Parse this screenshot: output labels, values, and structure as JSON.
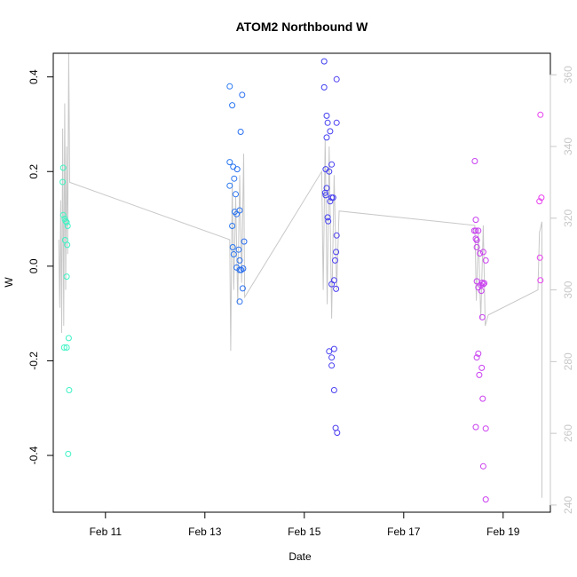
{
  "chart_data": {
    "type": "scatter",
    "title": "ATOM2 Northbound W",
    "xlabel": "Date",
    "ylabel": "W",
    "x_ticks": [
      {
        "label": "Feb 11",
        "day": 11
      },
      {
        "label": "Feb 13",
        "day": 13
      },
      {
        "label": "Feb 15",
        "day": 15
      },
      {
        "label": "Feb 17",
        "day": 17
      },
      {
        "label": "Feb 19",
        "day": 19
      }
    ],
    "xlim": [
      9.95,
      19.95
    ],
    "ylim": [
      -0.52,
      0.45
    ],
    "y_ticks": [
      "-0.4",
      "-0.2",
      "0.0",
      "0.2",
      "0.4"
    ],
    "y2_ticks": [
      "240",
      "260",
      "280",
      "300",
      "320",
      "340",
      "360"
    ],
    "y2lim": [
      238,
      366
    ],
    "grid": false,
    "colors": {
      "points_gradient": [
        "#3ff5c2",
        "#2ed0f0",
        "#2a7ff0",
        "#2a3ff0",
        "#7a3ff0",
        "#c03ff0",
        "#e83ff0"
      ],
      "secondary_line": "#c8c8c8",
      "secondary_axis": "#c8c8c8"
    },
    "series": [
      {
        "points": [
          [
            10.15,
            0.208
          ],
          [
            10.14,
            0.178
          ],
          [
            10.15,
            0.108
          ],
          [
            10.18,
            0.1
          ],
          [
            10.2,
            0.095
          ],
          [
            10.22,
            0.093
          ],
          [
            10.24,
            0.085
          ],
          [
            10.19,
            0.055
          ],
          [
            10.23,
            0.045
          ],
          [
            10.22,
            -0.022
          ],
          [
            10.17,
            -0.172
          ],
          [
            10.22,
            -0.172
          ],
          [
            10.26,
            -0.152
          ],
          [
            10.27,
            -0.262
          ],
          [
            10.25,
            -0.397
          ],
          [
            13.5,
            0.38
          ],
          [
            13.55,
            0.34
          ],
          [
            13.75,
            0.362
          ],
          [
            13.72,
            0.284
          ],
          [
            13.5,
            0.22
          ],
          [
            13.57,
            0.21
          ],
          [
            13.65,
            0.205
          ],
          [
            13.59,
            0.185
          ],
          [
            13.5,
            0.17
          ],
          [
            13.62,
            0.152
          ],
          [
            13.7,
            0.118
          ],
          [
            13.6,
            0.115
          ],
          [
            13.64,
            0.11
          ],
          [
            13.55,
            0.085
          ],
          [
            13.56,
            0.04
          ],
          [
            13.68,
            0.035
          ],
          [
            13.79,
            0.052
          ],
          [
            13.58,
            0.025
          ],
          [
            13.7,
            0.012
          ],
          [
            13.64,
            -0.003
          ],
          [
            13.7,
            -0.008
          ],
          [
            13.73,
            -0.008
          ],
          [
            13.77,
            -0.005
          ],
          [
            13.76,
            -0.047
          ],
          [
            13.7,
            -0.075
          ],
          [
            15.4,
            0.433
          ],
          [
            15.4,
            0.378
          ],
          [
            15.65,
            0.395
          ],
          [
            15.45,
            0.318
          ],
          [
            15.47,
            0.303
          ],
          [
            15.65,
            0.303
          ],
          [
            15.52,
            0.285
          ],
          [
            15.45,
            0.272
          ],
          [
            15.55,
            0.215
          ],
          [
            15.43,
            0.205
          ],
          [
            15.5,
            0.2
          ],
          [
            15.45,
            0.165
          ],
          [
            15.42,
            0.155
          ],
          [
            15.43,
            0.15
          ],
          [
            15.55,
            0.145
          ],
          [
            15.58,
            0.145
          ],
          [
            15.52,
            0.137
          ],
          [
            15.47,
            0.103
          ],
          [
            15.48,
            0.095
          ],
          [
            15.65,
            0.065
          ],
          [
            15.64,
            0.03
          ],
          [
            15.62,
            0.012
          ],
          [
            15.6,
            -0.03
          ],
          [
            15.55,
            -0.038
          ],
          [
            15.64,
            -0.048
          ],
          [
            15.6,
            -0.175
          ],
          [
            15.5,
            -0.18
          ],
          [
            15.55,
            -0.193
          ],
          [
            15.55,
            -0.21
          ],
          [
            15.6,
            -0.262
          ],
          [
            15.63,
            -0.342
          ],
          [
            15.66,
            -0.352
          ],
          [
            18.43,
            0.222
          ],
          [
            18.45,
            0.098
          ],
          [
            18.42,
            0.075
          ],
          [
            18.45,
            0.075
          ],
          [
            18.5,
            0.075
          ],
          [
            18.45,
            0.058
          ],
          [
            18.47,
            0.055
          ],
          [
            18.47,
            0.04
          ],
          [
            18.6,
            0.03
          ],
          [
            18.53,
            0.027
          ],
          [
            18.65,
            0.012
          ],
          [
            18.47,
            -0.032
          ],
          [
            18.58,
            -0.035
          ],
          [
            18.6,
            -0.038
          ],
          [
            18.55,
            -0.04
          ],
          [
            18.62,
            -0.036
          ],
          [
            18.5,
            -0.045
          ],
          [
            18.56,
            -0.052
          ],
          [
            18.58,
            -0.108
          ],
          [
            18.5,
            -0.185
          ],
          [
            18.47,
            -0.193
          ],
          [
            18.57,
            -0.215
          ],
          [
            18.52,
            -0.23
          ],
          [
            18.59,
            -0.28
          ],
          [
            18.45,
            -0.34
          ],
          [
            18.65,
            -0.343
          ],
          [
            18.6,
            -0.423
          ],
          [
            18.65,
            -0.493
          ],
          [
            19.75,
            0.32
          ],
          [
            19.77,
            0.145
          ],
          [
            19.73,
            0.137
          ],
          [
            19.74,
            0.018
          ],
          [
            19.75,
            -0.03
          ]
        ]
      },
      {
        "axis": "secondary",
        "line": [
          [
            10.06,
            314
          ],
          [
            10.08,
            295
          ],
          [
            10.1,
            325
          ],
          [
            10.12,
            288
          ],
          [
            10.14,
            345
          ],
          [
            10.16,
            290
          ],
          [
            10.18,
            352
          ],
          [
            10.2,
            300
          ],
          [
            10.22,
            340
          ],
          [
            10.24,
            310
          ],
          [
            10.26,
            366
          ],
          [
            10.28,
            330
          ],
          [
            13.5,
            314
          ],
          [
            13.52,
            283
          ],
          [
            13.55,
            330
          ],
          [
            13.58,
            300
          ],
          [
            13.62,
            326
          ],
          [
            13.66,
            296
          ],
          [
            13.7,
            332
          ],
          [
            13.74,
            302
          ],
          [
            13.78,
            338
          ],
          [
            13.8,
            298
          ],
          [
            15.35,
            333
          ],
          [
            15.38,
            300
          ],
          [
            15.42,
            342
          ],
          [
            15.46,
            296
          ],
          [
            15.5,
            340
          ],
          [
            15.55,
            292
          ],
          [
            15.6,
            332
          ],
          [
            15.65,
            300
          ],
          [
            15.7,
            322
          ],
          [
            18.43,
            318
          ],
          [
            18.46,
            297
          ],
          [
            18.5,
            316
          ],
          [
            18.55,
            292
          ],
          [
            18.6,
            318
          ],
          [
            18.64,
            290
          ],
          [
            18.7,
            293
          ],
          [
            19.7,
            300
          ],
          [
            19.73,
            316
          ],
          [
            19.78,
            319
          ],
          [
            19.78,
            242
          ]
        ]
      }
    ]
  }
}
